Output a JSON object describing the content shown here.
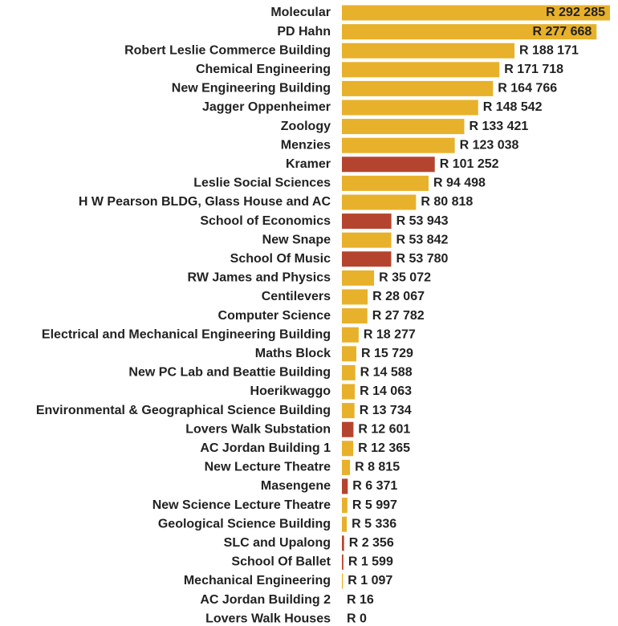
{
  "chart_data": {
    "type": "bar",
    "orientation": "horizontal",
    "categories": [
      "Molecular",
      "PD Hahn",
      "Robert Leslie Commerce Building",
      "Chemical Engineering",
      "New Engineering Building",
      "Jagger Oppenheimer",
      "Zoology",
      "Menzies",
      "Kramer",
      "Leslie Social Sciences",
      "H W Pearson BLDG, Glass House and AC",
      "School of Economics",
      "New Snape",
      "School Of Music",
      "RW James and Physics",
      "Centilevers",
      "Computer Science",
      "Electrical and Mechanical Engineering Building",
      "Maths Block",
      "New PC Lab and Beattie Building",
      "Hoerikwaggo",
      "Environmental & Geographical Science Building",
      "Lovers Walk Substation",
      "AC Jordan Building 1",
      "New Lecture Theatre",
      "Masengene",
      "New Science Lecture Theatre",
      "Geological Science Building",
      "SLC and Upalong",
      "School Of Ballet",
      "Mechanical Engineering",
      "AC Jordan Building 2",
      "Lovers Walk Houses"
    ],
    "values": [
      292285,
      277668,
      188171,
      171718,
      164766,
      148542,
      133421,
      123038,
      101252,
      94498,
      80818,
      53943,
      53842,
      53780,
      35072,
      28067,
      27782,
      18277,
      15729,
      14588,
      14063,
      13734,
      12601,
      12365,
      8815,
      6371,
      5997,
      5336,
      2356,
      1599,
      1097,
      16,
      0
    ],
    "value_labels": [
      "R 292 285",
      "R 277 668",
      "R 188 171",
      "R 171 718",
      "R 164 766",
      "R 148 542",
      "R 133 421",
      "R 123 038",
      "R 101 252",
      "R 94 498",
      "R 80 818",
      "R 53 943",
      "R 53 842",
      "R 53 780",
      "R 35 072",
      "R 28 067",
      "R 27 782",
      "R 18 277",
      "R 15 729",
      "R 14 588",
      "R 14 063",
      "R 13 734",
      "R 12 601",
      "R 12 365",
      "R 8 815",
      "R 6 371",
      "R 5 997",
      "R 5 336",
      "R 2 356",
      "R 1 599",
      "R 1 097",
      "R 16",
      "R 0"
    ],
    "colors": [
      "#e8b12b",
      "#e8b12b",
      "#e8b12b",
      "#e8b12b",
      "#e8b12b",
      "#e8b12b",
      "#e8b12b",
      "#e8b12b",
      "#b5442f",
      "#e8b12b",
      "#e8b12b",
      "#b5442f",
      "#e8b12b",
      "#b5442f",
      "#e8b12b",
      "#e8b12b",
      "#e8b12b",
      "#e8b12b",
      "#e8b12b",
      "#e8b12b",
      "#e8b12b",
      "#e8b12b",
      "#b5442f",
      "#e8b12b",
      "#e8b12b",
      "#b5442f",
      "#e8b12b",
      "#e8b12b",
      "#b5442f",
      "#b5442f",
      "#e8b12b",
      "#e8b12b",
      "#e8b12b"
    ]
  }
}
